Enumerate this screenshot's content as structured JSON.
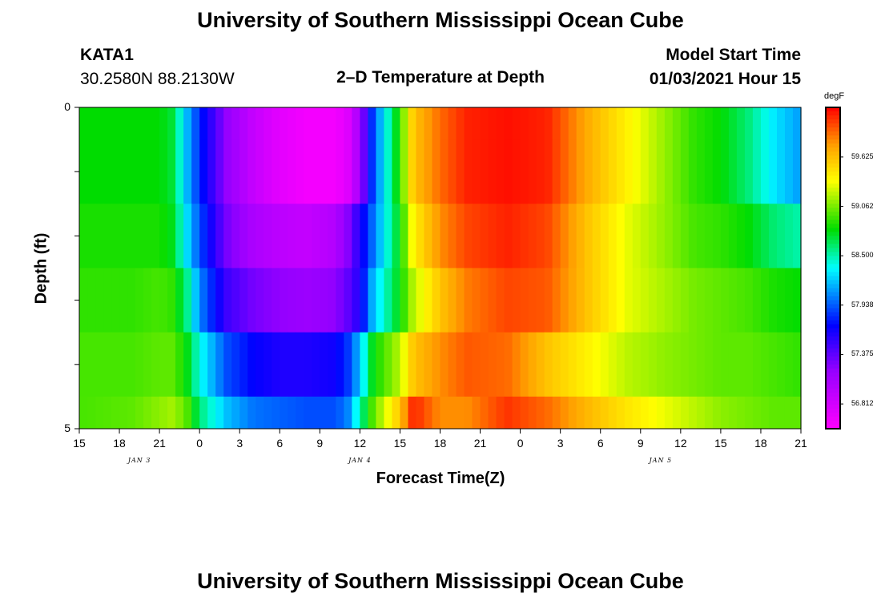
{
  "header": {
    "title": "University of Southern Mississippi Ocean Cube",
    "station": "KATA1",
    "coords": "30.2580N 88.2130W",
    "subtitle": "2–D Temperature at Depth",
    "model_label": "Model Start Time",
    "model_time": "01/03/2021 Hour 15"
  },
  "footer": {
    "title": "University of Southern Mississippi Ocean Cube"
  },
  "chart_data": {
    "type": "heatmap",
    "title": "2–D Temperature at Depth",
    "xlabel": "Forecast Time(Z)",
    "ylabel": "Depth (ft)",
    "x_tick_labels": [
      "15",
      "18",
      "21",
      "0",
      "3",
      "6",
      "9",
      "12",
      "15",
      "18",
      "21",
      "0",
      "3",
      "6",
      "9",
      "12",
      "15",
      "18",
      "21"
    ],
    "date_labels": [
      {
        "label": "JAN 3",
        "at_tick": 1.5
      },
      {
        "label": "JAN 4",
        "at_tick": 7
      },
      {
        "label": "JAN 5",
        "at_tick": 14.5
      }
    ],
    "x_hours_range": [
      0,
      54
    ],
    "y_tick_labels": [
      "0",
      "5"
    ],
    "ylim": [
      0,
      5
    ],
    "colorbar": {
      "unit": "degF",
      "ticks": [
        "59.625",
        "59.062",
        "58.500",
        "57.938",
        "57.375",
        "56.812"
      ],
      "range": [
        56.53,
        60.19
      ]
    },
    "depth_layers": [
      0.5,
      1.5,
      2.5,
      3.5,
      4.5
    ],
    "keypoints_hours": [
      0,
      4,
      6,
      7,
      8,
      9,
      11,
      13,
      15,
      17,
      19,
      20,
      21,
      22,
      24,
      25,
      27,
      29,
      32,
      35,
      38,
      41,
      44,
      46,
      48,
      50,
      52,
      54
    ],
    "rows": [
      [
        58.8,
        58.8,
        58.8,
        58.7,
        58.2,
        57.8,
        57.2,
        56.9,
        56.7,
        56.6,
        56.6,
        56.7,
        57.1,
        57.9,
        58.9,
        59.6,
        59.9,
        60.1,
        60.15,
        60.1,
        59.7,
        59.4,
        59.1,
        58.9,
        58.8,
        58.6,
        58.3,
        58.1
      ],
      [
        58.85,
        58.85,
        58.85,
        58.75,
        58.3,
        57.9,
        57.3,
        57.05,
        56.95,
        56.9,
        57.0,
        57.2,
        57.6,
        58.0,
        58.8,
        59.4,
        59.8,
        60.0,
        60.1,
        60.0,
        59.6,
        59.3,
        59.1,
        58.95,
        58.9,
        58.8,
        58.6,
        58.5
      ],
      [
        58.9,
        58.9,
        58.95,
        58.9,
        58.6,
        58.05,
        57.5,
        57.3,
        57.2,
        57.15,
        57.2,
        57.35,
        57.6,
        58.2,
        58.8,
        59.2,
        59.6,
        59.85,
        60.0,
        59.95,
        59.6,
        59.3,
        59.15,
        59.05,
        59.0,
        58.95,
        58.85,
        58.8
      ],
      [
        58.95,
        58.95,
        59.0,
        59.0,
        58.8,
        58.4,
        57.9,
        57.7,
        57.6,
        57.6,
        57.65,
        57.8,
        58.2,
        58.8,
        59.2,
        59.6,
        59.8,
        59.95,
        59.9,
        59.6,
        59.4,
        59.2,
        59.1,
        59.05,
        59.0,
        59.0,
        58.95,
        58.9
      ],
      [
        58.95,
        59.0,
        59.1,
        59.15,
        59.0,
        58.6,
        58.2,
        58.0,
        57.95,
        57.9,
        57.9,
        58.0,
        58.5,
        59.0,
        59.6,
        60.1,
        59.8,
        59.8,
        60.05,
        59.9,
        59.65,
        59.45,
        59.3,
        59.2,
        59.1,
        59.05,
        59.0,
        59.0
      ]
    ]
  }
}
